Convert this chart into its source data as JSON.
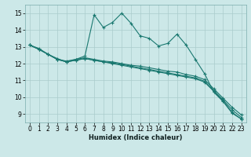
{
  "xlabel": "Humidex (Indice chaleur)",
  "bg_color": "#cce8e8",
  "grid_color": "#aacccc",
  "line_color": "#1a7870",
  "xlim": [
    -0.5,
    23.5
  ],
  "ylim": [
    8.5,
    15.5
  ],
  "xticks": [
    0,
    1,
    2,
    3,
    4,
    5,
    6,
    7,
    8,
    9,
    10,
    11,
    12,
    13,
    14,
    15,
    16,
    17,
    18,
    19,
    20,
    21,
    22,
    23
  ],
  "yticks": [
    9,
    10,
    11,
    12,
    13,
    14,
    15
  ],
  "series": [
    [
      13.1,
      12.9,
      12.55,
      12.3,
      12.1,
      12.25,
      12.45,
      14.9,
      14.15,
      14.45,
      15.0,
      14.4,
      13.65,
      13.5,
      13.05,
      13.2,
      13.75,
      13.1,
      12.25,
      11.4,
      10.3,
      9.75,
      9.05,
      8.7
    ],
    [
      13.1,
      12.85,
      12.55,
      12.25,
      12.1,
      12.2,
      12.3,
      12.2,
      12.1,
      12.0,
      11.9,
      11.8,
      11.7,
      11.6,
      11.5,
      11.4,
      11.3,
      11.2,
      11.1,
      10.9,
      10.35,
      9.8,
      9.1,
      8.7
    ],
    [
      13.1,
      12.85,
      12.55,
      12.25,
      12.1,
      12.2,
      12.3,
      12.2,
      12.1,
      12.05,
      11.95,
      11.85,
      11.75,
      11.65,
      11.55,
      11.45,
      11.35,
      11.25,
      11.15,
      10.95,
      10.4,
      9.85,
      9.25,
      8.8
    ],
    [
      13.1,
      12.85,
      12.55,
      12.25,
      12.15,
      12.25,
      12.35,
      12.25,
      12.15,
      12.1,
      12.0,
      11.9,
      11.85,
      11.75,
      11.65,
      11.55,
      11.5,
      11.35,
      11.25,
      11.05,
      10.5,
      9.95,
      9.4,
      8.95
    ]
  ]
}
